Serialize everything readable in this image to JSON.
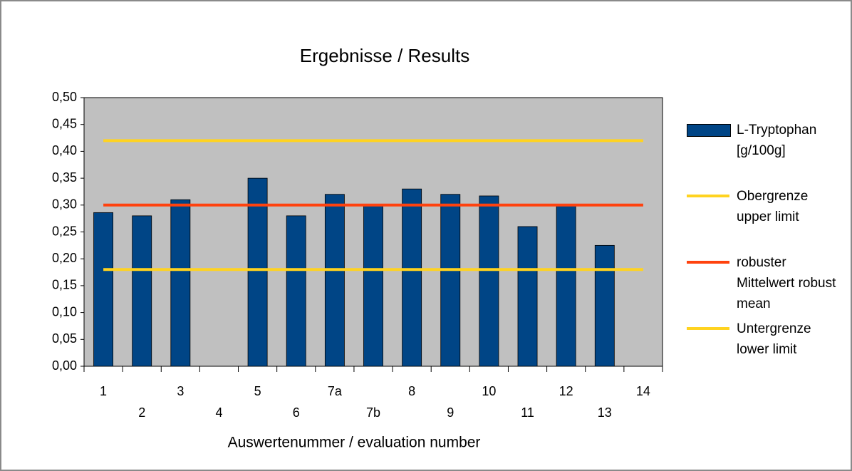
{
  "chart_data": {
    "type": "bar",
    "title": "Ergebnisse / Results",
    "x_label": "Auswertenummer / evaluation number",
    "categories": [
      "1",
      "2",
      "3",
      "4",
      "5",
      "6",
      "7a",
      "7b",
      "8",
      "9",
      "10",
      "11",
      "12",
      "13",
      "14"
    ],
    "series": [
      {
        "name": "L-Tryptophan [g/100g]",
        "type": "bar",
        "color": "#004586",
        "values": [
          0.286,
          0.28,
          0.31,
          null,
          0.35,
          0.28,
          0.32,
          0.3,
          0.33,
          0.32,
          0.317,
          0.26,
          0.3,
          0.225,
          null
        ]
      },
      {
        "name": "Obergrenze upper limit",
        "type": "line",
        "color": "#ffd320",
        "values": [
          0.42,
          0.42,
          0.42,
          0.42,
          0.42,
          0.42,
          0.42,
          0.42,
          0.42,
          0.42,
          0.42,
          0.42,
          0.42,
          0.42,
          0.42
        ]
      },
      {
        "name": "robuster Mittelwert robust mean",
        "type": "line",
        "color": "#ff420e",
        "values": [
          0.3,
          0.3,
          0.3,
          0.3,
          0.3,
          0.3,
          0.3,
          0.3,
          0.3,
          0.3,
          0.3,
          0.3,
          0.3,
          0.3,
          0.3
        ]
      },
      {
        "name": "Untergrenze lower limit",
        "type": "line",
        "color": "#ffd320",
        "values": [
          0.18,
          0.18,
          0.18,
          0.18,
          0.18,
          0.18,
          0.18,
          0.18,
          0.18,
          0.18,
          0.18,
          0.18,
          0.18,
          0.18,
          0.18
        ]
      }
    ],
    "ylim": [
      0,
      0.5
    ],
    "yticks": [
      {
        "value": 0,
        "label": "0,00"
      },
      {
        "value": 0.05,
        "label": "0,05"
      },
      {
        "value": 0.1,
        "label": "0,10"
      },
      {
        "value": 0.15,
        "label": "0,15"
      },
      {
        "value": 0.2,
        "label": "0,20"
      },
      {
        "value": 0.25,
        "label": "0,25"
      },
      {
        "value": 0.3,
        "label": "0,30"
      },
      {
        "value": 0.35,
        "label": "0,35"
      },
      {
        "value": 0.4,
        "label": "0,40"
      },
      {
        "value": 0.45,
        "label": "0,45"
      },
      {
        "value": 0.5,
        "label": "0,50"
      }
    ],
    "grid": false,
    "legend": "right",
    "plot_background": "#c0c0c0"
  }
}
